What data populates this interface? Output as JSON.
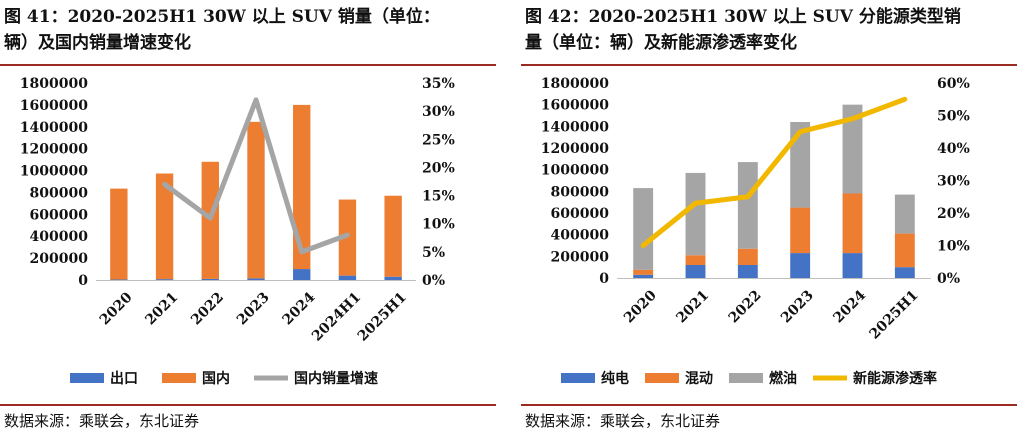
{
  "left": {
    "title_line1": "图 41：2020-2025H1 30W 以上 SUV 销量（单位：",
    "title_line2": "辆）及国内销量增速变化",
    "source": "数据来源：乘联会，东北证券",
    "chart_data": {
      "type": "bar",
      "categories": [
        "2020",
        "2021",
        "2022",
        "2023",
        "2024",
        "2024H1",
        "2025H1"
      ],
      "ylim": [
        0,
        1800000
      ],
      "ytick_labels": [
        "0",
        "200000",
        "400000",
        "600000",
        "800000",
        "1000000",
        "1200000",
        "1400000",
        "1600000",
        "1800000"
      ],
      "y2lim": [
        0,
        0.35
      ],
      "y2tick_labels": [
        "0%",
        "5%",
        "10%",
        "15%",
        "20%",
        "25%",
        "30%",
        "35%"
      ],
      "series": [
        {
          "name": "出口",
          "color": "#4472C4",
          "values": [
            5000,
            8000,
            10000,
            15000,
            100000,
            40000,
            30000
          ]
        },
        {
          "name": "国内",
          "color": "#ED7D31",
          "values": [
            830000,
            965000,
            1070000,
            1430000,
            1500000,
            695000,
            740000
          ]
        },
        {
          "name": "国内销量增速",
          "type": "line",
          "color": "#A5A5A5",
          "values": [
            null,
            0.17,
            0.11,
            0.32,
            0.05,
            0.08,
            null
          ]
        }
      ],
      "grid": false,
      "legend": "bottom"
    }
  },
  "right": {
    "title_line1": "图 42：2020-2025H1 30W 以上 SUV 分能源类型销",
    "title_line2": "量（单位：辆）及新能源渗透率变化",
    "source": "数据来源：乘联会，东北证券",
    "chart_data": {
      "type": "bar",
      "stacked": true,
      "categories": [
        "2020",
        "2021",
        "2022",
        "2023",
        "2024",
        "2025H1"
      ],
      "ylim": [
        0,
        1800000
      ],
      "ytick_labels": [
        "0",
        "200000",
        "400000",
        "600000",
        "800000",
        "1000000",
        "1200000",
        "1400000",
        "1600000",
        "1800000"
      ],
      "y2lim": [
        0,
        0.6
      ],
      "y2tick_labels": [
        "0%",
        "10%",
        "20%",
        "30%",
        "40%",
        "50%",
        "60%"
      ],
      "series": [
        {
          "name": "纯电",
          "color": "#4472C4",
          "values": [
            30000,
            120000,
            120000,
            230000,
            230000,
            100000
          ]
        },
        {
          "name": "混动",
          "color": "#ED7D31",
          "values": [
            45000,
            90000,
            150000,
            420000,
            550000,
            310000
          ]
        },
        {
          "name": "燃油",
          "color": "#A5A5A5",
          "values": [
            755000,
            760000,
            800000,
            790000,
            820000,
            360000
          ]
        },
        {
          "name": "新能源渗透率",
          "type": "line",
          "color": "#F2B800",
          "values": [
            0.1,
            0.23,
            0.25,
            0.45,
            0.49,
            0.55
          ]
        }
      ],
      "grid": false,
      "legend": "bottom"
    }
  }
}
